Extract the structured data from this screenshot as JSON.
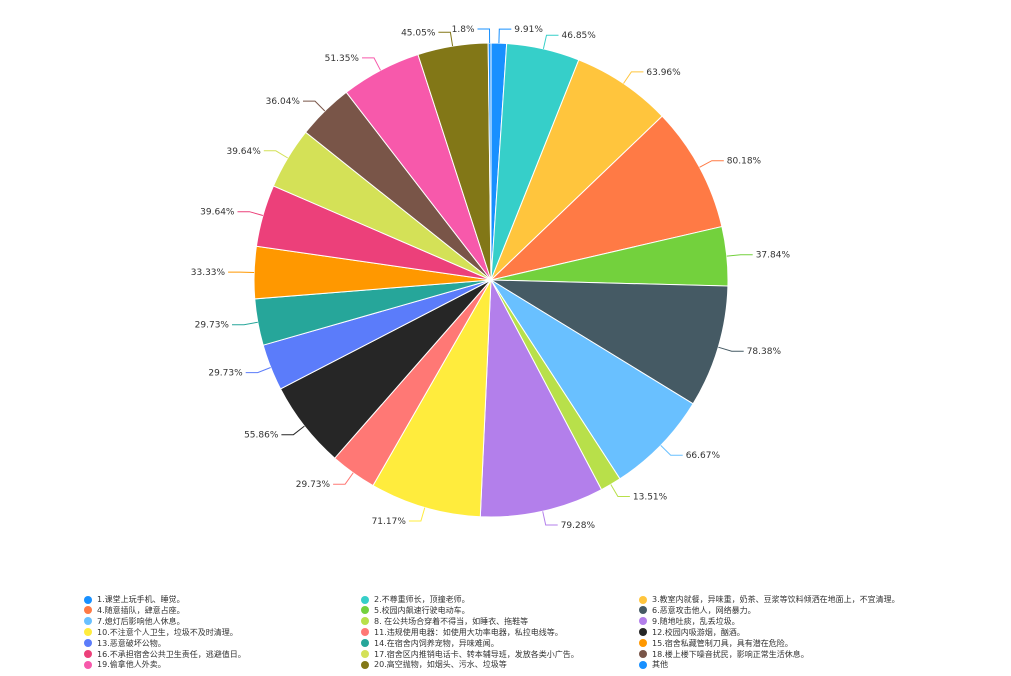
{
  "chart_data": {
    "type": "pie",
    "series": [
      {
        "label": "1.课堂上玩手机、睡觉。",
        "value": 9.91,
        "data_label": "9.91%",
        "color": "#1890ff"
      },
      {
        "label": "2.不尊重师长，顶撞老师。",
        "value": 46.85,
        "data_label": "46.85%",
        "color": "#36cfc9"
      },
      {
        "label": "3.教室内就餐，异味重，奶茶、豆浆等饮料倾洒在地面上，不宜清理。",
        "value": 63.96,
        "data_label": "63.96%",
        "color": "#ffc53d"
      },
      {
        "label": "4.随意插队，肆意占座。",
        "value": 80.18,
        "data_label": "80.18%",
        "color": "#ff7a45"
      },
      {
        "label": "5.校园内飙速行驶电动车。",
        "value": 37.84,
        "data_label": "37.84%",
        "color": "#73d13d"
      },
      {
        "label": "6.恶意攻击他人，网络暴力。",
        "value": 78.38,
        "data_label": "78.38%",
        "color": "#455a64"
      },
      {
        "label": "7.熄灯后影响他人休息。",
        "value": 66.67,
        "data_label": "66.67%",
        "color": "#69c0ff"
      },
      {
        "label": "8. 在公共场合穿着不得当，如睡衣、拖鞋等",
        "value": 13.51,
        "data_label": "13.51%",
        "color": "#b8e04a"
      },
      {
        "label": "9.随地吐痰，乱丢垃圾。",
        "value": 79.28,
        "data_label": "79.28%",
        "color": "#b37feb"
      },
      {
        "label": "10.不注意个人卫生，垃圾不及时清理。",
        "value": 71.17,
        "data_label": "71.17%",
        "color": "#ffec3d"
      },
      {
        "label": "11.违规使用电器：如使用大功率电器，私拉电线等。",
        "value": 29.73,
        "data_label": "29.73%",
        "color": "#ff7875"
      },
      {
        "label": "12.校园内吸游烟，酗酒。",
        "value": 55.86,
        "data_label": "55.86%",
        "color": "#262626"
      },
      {
        "label": "13.恶意破坏公物。",
        "value": 29.73,
        "data_label": "29.73%",
        "color": "#5b7cfa"
      },
      {
        "label": "14.在宿舍内饲养宠物，异味难闻。",
        "value": 29.73,
        "data_label": "29.73%",
        "color": "#26a69a"
      },
      {
        "label": "15.宿舍私藏管制刀具，具有潜在危险。",
        "value": 33.33,
        "data_label": "33.33%",
        "color": "#ff9800"
      },
      {
        "label": "16.不承担宿舍公共卫生责任，逃避值日。",
        "value": 39.64,
        "data_label": "39.64%",
        "color": "#ec407a"
      },
      {
        "label": "17.宿舍区内推销电话卡、转本辅导班，发放各类小广告。",
        "value": 39.64,
        "data_label": "39.64%",
        "color": "#d4e157"
      },
      {
        "label": "18.楼上楼下噪音扰民，影响正常生活休息。",
        "value": 36.04,
        "data_label": "36.04%",
        "color": "#795548"
      },
      {
        "label": "19.偷拿他人外卖。",
        "value": 51.35,
        "data_label": "51.35%",
        "color": "#f759ab"
      },
      {
        "label": "20.高空抛物，如烟头、污水、垃圾等",
        "value": 45.05,
        "data_label": "45.05%",
        "color": "#827717"
      },
      {
        "label": "其他",
        "value": 1.8,
        "data_label": "1.8%",
        "color": "#1890ff"
      }
    ],
    "legend_position": "bottom"
  }
}
